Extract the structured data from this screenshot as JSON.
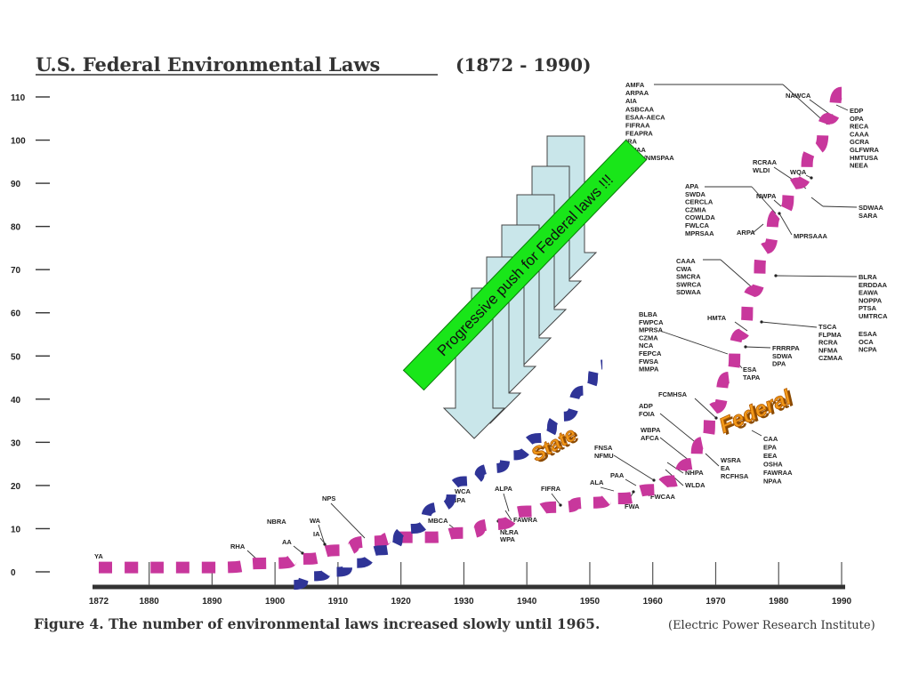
{
  "chart_data": {
    "type": "line",
    "title": "U.S. Federal Environmental  Laws",
    "title_range": "(1872 - 1990)",
    "caption": "Figure 4. The number of environmental laws increased slowly until 1965.",
    "source": "(Electric Power Research Institute)",
    "x_ticks": [
      "1872",
      "1880",
      "1890",
      "1900",
      "1910",
      "1920",
      "1930",
      "1940",
      "1950",
      "1960",
      "1970",
      "1980",
      "1990"
    ],
    "y_ticks": [
      "0",
      "10",
      "20",
      "30",
      "40",
      "50",
      "60",
      "70",
      "80",
      "90",
      "100",
      "110"
    ],
    "xlim": [
      1872,
      1990
    ],
    "ylim": [
      0,
      110
    ],
    "grid": false,
    "series": [
      {
        "name": "Federal",
        "color": "#c8379c",
        "x": [
          1872,
          1890,
          1900,
          1905,
          1910,
          1915,
          1920,
          1925,
          1930,
          1935,
          1940,
          1945,
          1950,
          1955,
          1960,
          1963,
          1966,
          1968,
          1970,
          1972,
          1974,
          1976,
          1978,
          1980,
          1983,
          1986,
          1988,
          1990
        ],
        "y": [
          1,
          1,
          2,
          3,
          5,
          7,
          8,
          8,
          9,
          11,
          14,
          15,
          16,
          17,
          19,
          21,
          25,
          30,
          38,
          45,
          55,
          65,
          75,
          83,
          90,
          98,
          105,
          111
        ]
      },
      {
        "name": "State",
        "color": "#2f3497",
        "x": [
          1903,
          1906,
          1910,
          1913,
          1917,
          1922,
          1926,
          1930,
          1935,
          1938,
          1942,
          1946,
          1949,
          1952
        ],
        "y": [
          -3,
          -1,
          0,
          2,
          5,
          10,
          15,
          21,
          24,
          27,
          31,
          36,
          42,
          48
        ]
      }
    ],
    "annotations": {
      "state": "State",
      "federal": "Federal",
      "push": "Progressive push for Federal laws !!!"
    },
    "law_labels": {
      "ya": "YA",
      "rha": "RHA",
      "nbra": "NBRA",
      "aa": "AA",
      "wa": "WA",
      "ia": "IA",
      "nps": "NPS",
      "mbca": "MBCA",
      "wca": "WCA",
      "bpa": "BPA",
      "alpa": "ALPA",
      "fawra": "FAWRA",
      "nlra": "NLRA",
      "wpa": "WPA",
      "fifra": "FIFRA",
      "ala": "ALA",
      "fwa": "FWA",
      "paa": "PAA",
      "fwcaa": "FWCAA",
      "fnsa": "FNSA",
      "nfmu": "NFMU",
      "nhpa": "NHPA",
      "wlda": "WLDA",
      "wbpa": "WBPA",
      "afca": "AFCA",
      "wsra": "WSRA",
      "ea": "EA",
      "rcfhsa": "RCFHSA",
      "adp": "ADP",
      "foia": "FOIA",
      "fcmhsa": "FCMHSA",
      "caa_group": [
        "CAA",
        "EPA",
        "EEA",
        "OSHA",
        "FAWRAA",
        "NPAA"
      ],
      "blba_group": [
        "BLBA",
        "FWPCA",
        "MPRSA",
        "CZMA",
        "NCA",
        "FEPCA",
        "FWSA",
        "MMPA"
      ],
      "esa": "ESA",
      "tapa": "TAPA",
      "hmta": "HMTA",
      "frrrpa_group": [
        "FRRRPA",
        "SDWA",
        "DPA"
      ],
      "tsca_group": [
        "TSCA",
        "FLPMA",
        "RCRA",
        "NFMA",
        "CZMAA"
      ],
      "esaa_group": [
        "ESAA",
        "OCA",
        "NCPA"
      ],
      "caaa_group": [
        "CAAA",
        "CWA",
        "SMCRA",
        "SWRCA",
        "SDWAA"
      ],
      "blra_group": [
        "BLRA",
        "ERDDAA",
        "EAWA",
        "NOPPA",
        "PTSA",
        "UMTRCA"
      ],
      "apa_group": [
        "APA",
        "SWDA",
        "CERCLA",
        "CZMIA",
        "COWLDA",
        "FWLCA",
        "MPRSAA"
      ],
      "arpa": "ARPA",
      "mprsaaa": "MPRSAAA",
      "nwpa": "NWPA",
      "rcraa_group": [
        "RCRAA",
        "WLDI"
      ],
      "wqa": "WQA",
      "sdwaa_group": [
        "SDWAA",
        "SARA"
      ],
      "amfa_group": [
        "AMFA",
        "ARPAA",
        "AIA",
        "ASBCAA",
        "ESAA-AECA",
        "FIFRAA",
        "FEAPRA",
        "IRA",
        "NWAA",
        "NAPA/NMSPAA"
      ],
      "nawca": "NAWCA",
      "edp_group": [
        "EDP",
        "OPA",
        "RECA",
        "CAAA",
        "GCRA",
        "GLFWRA",
        "HMTUSA",
        "NEEA"
      ]
    }
  }
}
